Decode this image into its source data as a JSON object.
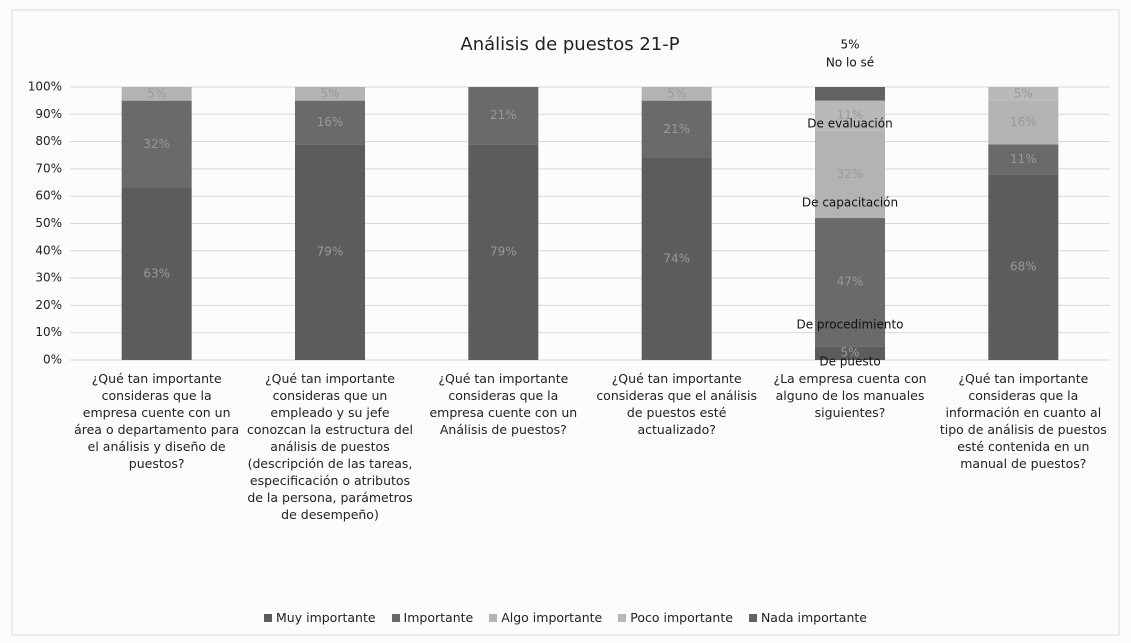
{
  "chart_data": {
    "type": "stacked-bar",
    "title": "Análisis de puestos 21-P",
    "categories": [
      "¿Qué tan importante consideras que la empresa cuente con un área o departamento para el análisis y diseño de puestos?",
      "¿Qué tan importante consideras que un empleado y su jefe conozcan la estructura del análisis de puestos (descripción de las tareas, especificación o atributos de la persona, parámetros de desempeño)",
      "¿Qué tan importante consideras que la empresa cuente con un Análisis de puestos?",
      "¿Qué tan importante consideras que el análisis de puestos esté actualizado?",
      "¿La empresa cuenta con alguno de los manuales siguientes?",
      "¿Qué tan importante consideras que la información en cuanto al tipo de análisis de puestos esté contenida en un manual de puestos?"
    ],
    "series": [
      {
        "name": "Muy importante",
        "color": "#5c5c5c",
        "values": [
          63,
          79,
          79,
          74,
          5,
          68
        ],
        "value_labels": [
          "63%",
          "79%",
          "79%",
          "74%",
          "5%",
          "68%"
        ]
      },
      {
        "name": "Importante",
        "color": "#6a6a6a",
        "values": [
          32,
          16,
          21,
          21,
          47,
          11
        ],
        "value_labels": [
          "32%",
          "16%",
          "21%",
          "21%",
          "47%",
          "11%"
        ]
      },
      {
        "name": "Algo importante",
        "color": "#b3b3b3",
        "values": [
          5,
          5,
          null,
          5,
          32,
          16
        ],
        "value_labels": [
          "5%",
          "5%",
          null,
          "5%",
          "32%",
          "16%"
        ]
      },
      {
        "name": "Poco importante",
        "color": "#b9b9b9",
        "values": [
          null,
          null,
          null,
          null,
          11,
          5
        ],
        "value_labels": [
          null,
          null,
          null,
          null,
          "11%",
          "5%"
        ]
      },
      {
        "name": "Nada importante",
        "color": "#626262",
        "values": [
          null,
          null,
          null,
          null,
          5,
          null
        ],
        "value_labels": [
          null,
          null,
          null,
          null,
          "5%",
          null
        ]
      }
    ],
    "annotations": [
      "De puesto",
      "De procedimiento",
      "De capacitación",
      "De evaluación",
      "No lo sé"
    ],
    "ylim": [
      0,
      100
    ],
    "yticks": [
      {
        "value": 0,
        "label": "0%"
      },
      {
        "value": 10,
        "label": "10%"
      },
      {
        "value": 20,
        "label": "20%"
      },
      {
        "value": 30,
        "label": "30%"
      },
      {
        "value": 40,
        "label": "40%"
      },
      {
        "value": 50,
        "label": "50%"
      },
      {
        "value": 60,
        "label": "60%"
      },
      {
        "value": 70,
        "label": "70%"
      },
      {
        "value": 80,
        "label": "80%"
      },
      {
        "value": 90,
        "label": "90%"
      },
      {
        "value": 100,
        "label": "100%"
      }
    ],
    "grid": true
  }
}
